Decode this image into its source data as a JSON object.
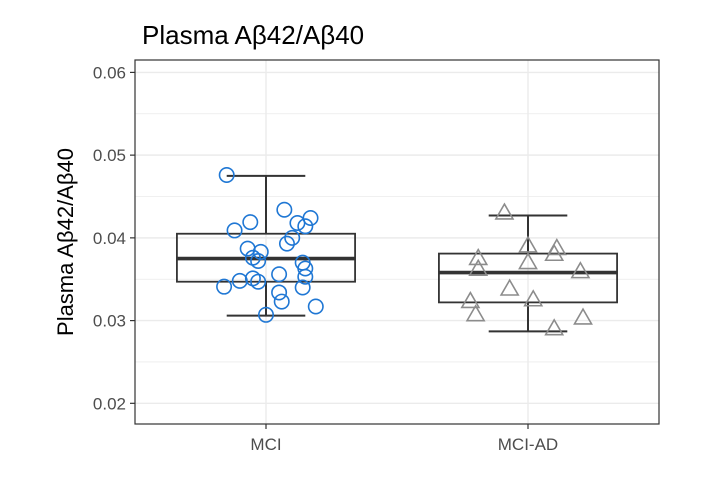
{
  "chart_data": {
    "type": "box",
    "title": "Plasma Aβ42/Aβ40",
    "xlabel": "",
    "ylabel": "Plasma Aβ42/Aβ40",
    "ylim": [
      0.0175,
      0.0615
    ],
    "yticks": [
      0.02,
      0.03,
      0.04,
      0.05,
      0.06
    ],
    "ytick_labels": [
      "0.02",
      "0.03",
      "0.04",
      "0.05",
      "0.06"
    ],
    "categories": [
      "MCI",
      "MCI-AD"
    ],
    "grid": true,
    "legend": "none",
    "colors": {
      "MCI": "#1f77d4",
      "MCI-AD": "#8c8c8c",
      "box": "#333333",
      "grid": "#ebebeb",
      "border": "#333333"
    },
    "groups": [
      {
        "name": "MCI",
        "marker": "circle",
        "box": {
          "whisker_low": 0.0306,
          "q1": 0.0347,
          "median": 0.0375,
          "q3": 0.0405,
          "whisker_high": 0.0475
        },
        "points": [
          {
            "dx": -0.15,
            "y": 0.0476
          },
          {
            "dx": 0.07,
            "y": 0.0434
          },
          {
            "dx": 0.17,
            "y": 0.0424
          },
          {
            "dx": -0.06,
            "y": 0.0419
          },
          {
            "dx": 0.12,
            "y": 0.0418
          },
          {
            "dx": 0.15,
            "y": 0.0414
          },
          {
            "dx": -0.12,
            "y": 0.0409
          },
          {
            "dx": 0.1,
            "y": 0.04
          },
          {
            "dx": 0.08,
            "y": 0.0393
          },
          {
            "dx": -0.07,
            "y": 0.0387
          },
          {
            "dx": -0.02,
            "y": 0.0383
          },
          {
            "dx": -0.05,
            "y": 0.0376
          },
          {
            "dx": -0.03,
            "y": 0.0372
          },
          {
            "dx": 0.14,
            "y": 0.037
          },
          {
            "dx": 0.15,
            "y": 0.0363
          },
          {
            "dx": 0.05,
            "y": 0.0356
          },
          {
            "dx": 0.15,
            "y": 0.0353
          },
          {
            "dx": -0.05,
            "y": 0.0351
          },
          {
            "dx": -0.1,
            "y": 0.0348
          },
          {
            "dx": -0.03,
            "y": 0.0347
          },
          {
            "dx": 0.14,
            "y": 0.034
          },
          {
            "dx": -0.16,
            "y": 0.0341
          },
          {
            "dx": 0.05,
            "y": 0.0334
          },
          {
            "dx": 0.06,
            "y": 0.0323
          },
          {
            "dx": 0.19,
            "y": 0.0317
          },
          {
            "dx": -0.0,
            "y": 0.0307
          }
        ]
      },
      {
        "name": "MCI-AD",
        "marker": "triangle",
        "box": {
          "whisker_low": 0.0287,
          "q1": 0.0322,
          "median": 0.0358,
          "q3": 0.0381,
          "whisker_high": 0.0427
        },
        "points": [
          {
            "dx": -0.09,
            "y": 0.043
          },
          {
            "dx": 0.0,
            "y": 0.039
          },
          {
            "dx": 0.11,
            "y": 0.0387
          },
          {
            "dx": 0.1,
            "y": 0.038
          },
          {
            "dx": -0.19,
            "y": 0.0375
          },
          {
            "dx": 0.0,
            "y": 0.037
          },
          {
            "dx": -0.19,
            "y": 0.0362
          },
          {
            "dx": 0.2,
            "y": 0.0359
          },
          {
            "dx": -0.07,
            "y": 0.0338
          },
          {
            "dx": 0.02,
            "y": 0.0325
          },
          {
            "dx": -0.22,
            "y": 0.0323
          },
          {
            "dx": -0.2,
            "y": 0.0307
          },
          {
            "dx": 0.21,
            "y": 0.0303
          },
          {
            "dx": 0.1,
            "y": 0.029
          }
        ]
      }
    ]
  }
}
